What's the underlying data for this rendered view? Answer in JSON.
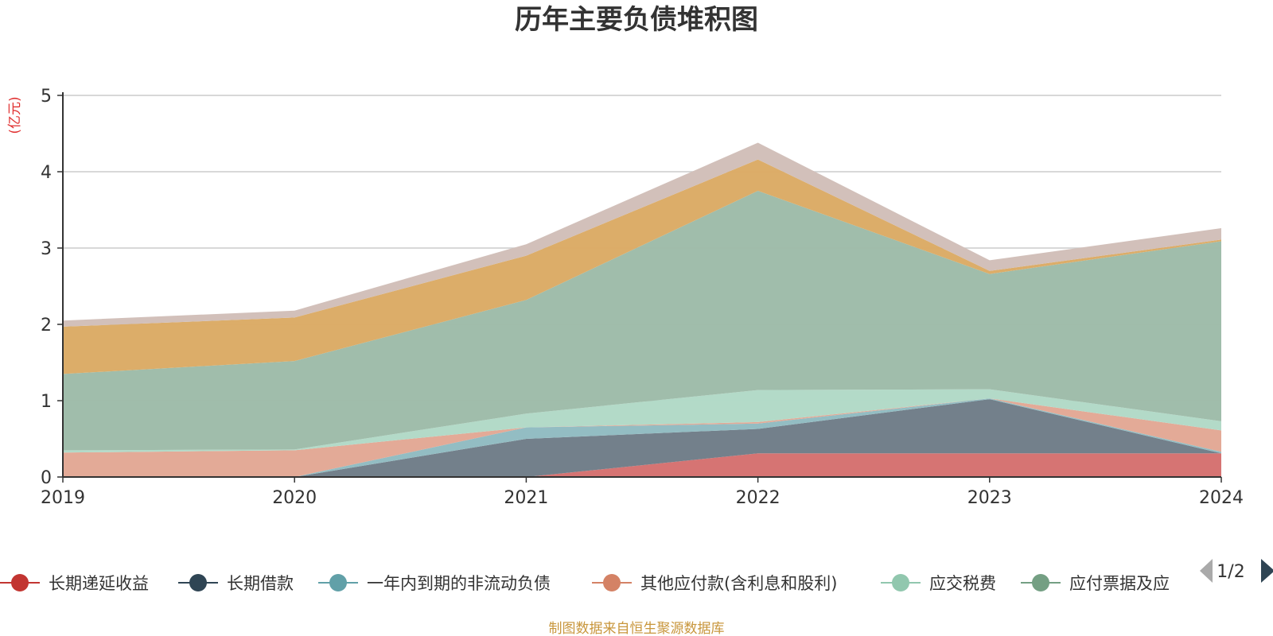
{
  "chart_data": {
    "type": "area",
    "stacked": true,
    "title": "历年主要负债堆积图",
    "unit_label": "(亿元)",
    "x": [
      "2019",
      "2020",
      "2021",
      "2022",
      "2023",
      "2024"
    ],
    "ylim": [
      0,
      5
    ],
    "yticks": [
      "0",
      "1",
      "2",
      "3",
      "4",
      "5"
    ],
    "grid": true,
    "legend_position": "bottom",
    "series": [
      {
        "name": "长期递延收益",
        "color": "#c23531",
        "fill": "#d5706e",
        "values": [
          0.0,
          0.0,
          0.0,
          0.31,
          0.31,
          0.31
        ]
      },
      {
        "name": "长期借款",
        "color": "#2f4554",
        "fill": "#6e7c87",
        "values": [
          0.0,
          0.0,
          0.5,
          0.32,
          0.71,
          0.0
        ]
      },
      {
        "name": "一年内到期的非流动负债",
        "color": "#61a0a8",
        "fill": "#8fbbc1",
        "values": [
          0.0,
          0.0,
          0.15,
          0.07,
          0.01,
          0.02
        ]
      },
      {
        "name": "其他应付款(含利息和股利)",
        "color": "#d48265",
        "fill": "#e2a794",
        "values": [
          0.32,
          0.35,
          0.0,
          0.02,
          0.0,
          0.28
        ]
      },
      {
        "name": "应交税费",
        "color": "#91c7ae",
        "fill": "#b1d9c6",
        "values": [
          0.03,
          0.01,
          0.18,
          0.42,
          0.12,
          0.12
        ]
      },
      {
        "name": "应付票据及应付账款",
        "color": "#749f83",
        "fill": "#9dbba8",
        "values": [
          1.0,
          1.16,
          1.49,
          2.61,
          1.51,
          2.36
        ]
      },
      {
        "name": "",
        "color": "#ca8622",
        "fill": "#dbaa64",
        "values": [
          0.62,
          0.57,
          0.58,
          0.41,
          0.04,
          0.02
        ]
      },
      {
        "name": "",
        "color": "#bda29a",
        "fill": "#d1beb8",
        "values": [
          0.08,
          0.09,
          0.15,
          0.22,
          0.14,
          0.15
        ]
      }
    ],
    "legend_labels": [
      "长期递延收益",
      "长期借款",
      "一年内到期的非流动负债",
      "其他应付款(含利息和股利)",
      "应交税费",
      "应付票据及应"
    ],
    "pager": "1/2",
    "source": "制图数据来自恒生聚源数据库"
  }
}
